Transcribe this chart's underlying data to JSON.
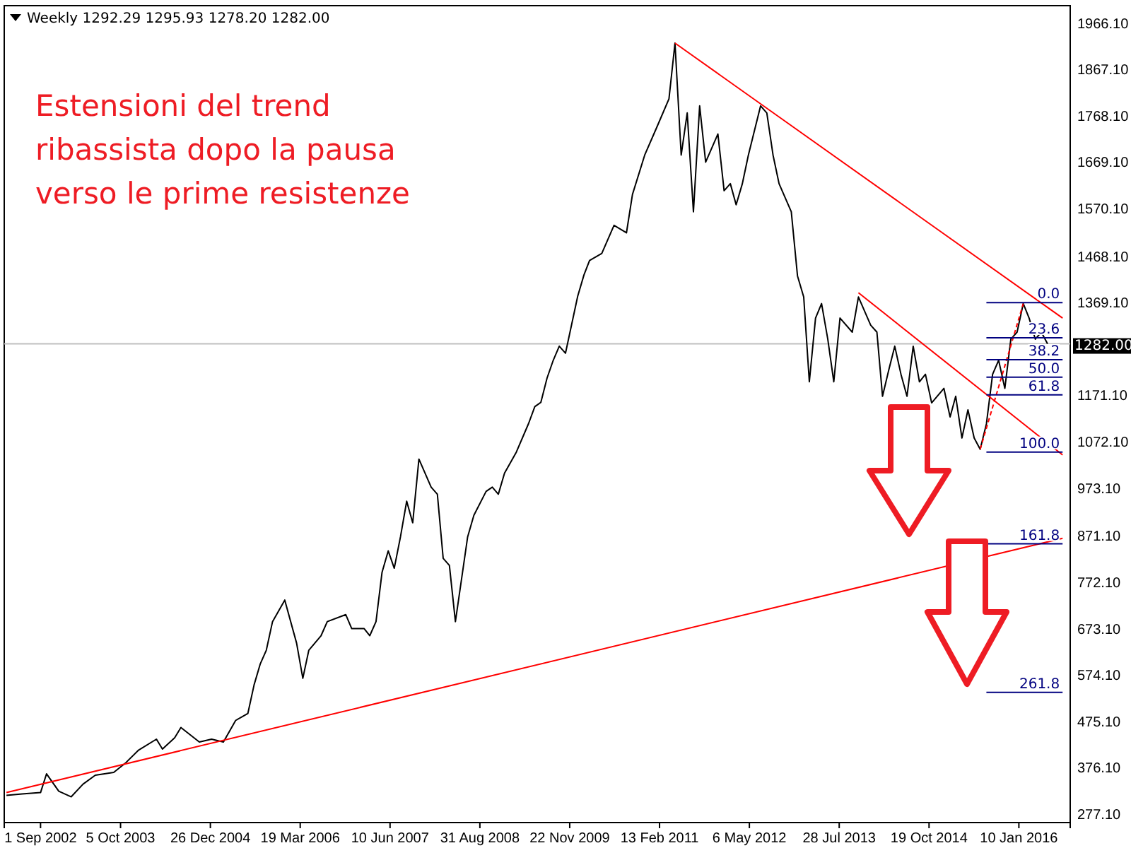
{
  "chart_data": {
    "type": "line",
    "title": "Weekly  1292.29 1295.93 1278.20 1282.00",
    "annotations": [
      "Estensioni del trend\nribassista dopo la pausa\nverso le prime resistenze"
    ],
    "xlim": [
      "2002-03-04",
      "2016-09-22"
    ],
    "xticks": [
      {
        "value": "2002-09-01",
        "label": "1 Sep 2002"
      },
      {
        "value": "2003-10-05",
        "label": "5 Oct 2003"
      },
      {
        "value": "2004-12-26",
        "label": "26 Dec 2004"
      },
      {
        "value": "2006-03-19",
        "label": "19 Mar 2006"
      },
      {
        "value": "2007-06-10",
        "label": "10 Jun 2007"
      },
      {
        "value": "2008-08-31",
        "label": "31 Aug 2008"
      },
      {
        "value": "2009-11-22",
        "label": "22 Nov 2009"
      },
      {
        "value": "2011-02-13",
        "label": "13 Feb 2011"
      },
      {
        "value": "2012-05-06",
        "label": "6 May 2012"
      },
      {
        "value": "2013-07-28",
        "label": "28 Jul 2013"
      },
      {
        "value": "2014-10-19",
        "label": "19 Oct 2014"
      },
      {
        "value": "2016-01-10",
        "label": "10 Jan 2016"
      }
    ],
    "ylim": [
      260,
      2004
    ],
    "yticks": [
      {
        "value": 277.1,
        "label": "277.10"
      },
      {
        "value": 376.1,
        "label": "376.10"
      },
      {
        "value": 475.1,
        "label": "475.10"
      },
      {
        "value": 574.1,
        "label": "574.10"
      },
      {
        "value": 673.1,
        "label": "673.10"
      },
      {
        "value": 772.1,
        "label": "772.10"
      },
      {
        "value": 871.1,
        "label": "871.10"
      },
      {
        "value": 973.1,
        "label": "973.10"
      },
      {
        "value": 1072.1,
        "label": "1072.10"
      },
      {
        "value": 1171.1,
        "label": "1171.10"
      },
      {
        "value": 1369.1,
        "label": "1369.10"
      },
      {
        "value": 1468.1,
        "label": "1468.10"
      },
      {
        "value": 1570.1,
        "label": "1570.10"
      },
      {
        "value": 1669.1,
        "label": "1669.10"
      },
      {
        "value": 1768.1,
        "label": "1768.10"
      },
      {
        "value": 1867.1,
        "label": "1867.10"
      },
      {
        "value": 1966.1,
        "label": "1966.10"
      }
    ],
    "ref_lines": [
      {
        "axis": "y",
        "value": 1282,
        "label": "1282.00",
        "color": "#c0c0c0"
      }
    ],
    "series": [
      {
        "color": "#000000",
        "x": [
          "2002-03-15",
          "2002-06",
          "2002-09",
          "2002-10",
          "2002-12",
          "2003-02",
          "2003-04",
          "2003-06",
          "2003-09",
          "2003-11",
          "2004-01",
          "2004-04",
          "2004-05",
          "2004-07",
          "2004-08",
          "2004-11",
          "2005-01",
          "2005-03",
          "2005-05",
          "2005-07",
          "2005-08",
          "2005-09",
          "2005-10",
          "2005-11",
          "2006-01",
          "2006-03",
          "2006-04",
          "2006-05",
          "2006-07",
          "2006-08",
          "2006-11",
          "2006-12",
          "2007-02",
          "2007-03",
          "2007-04",
          "2007-05",
          "2007-06",
          "2007-07",
          "2007-08",
          "2007-09",
          "2007-10",
          "2007-11",
          "2008-01",
          "2008-02",
          "2008-03",
          "2008-04",
          "2008-05",
          "2008-07",
          "2008-08",
          "2008-10",
          "2008-11",
          "2008-12",
          "2009-01",
          "2009-03",
          "2009-05",
          "2009-06",
          "2009-07",
          "2009-08",
          "2009-09",
          "2009-10",
          "2009-11",
          "2010-01",
          "2010-02",
          "2010-03",
          "2010-05",
          "2010-07",
          "2010-09",
          "2010-10",
          "2010-12",
          "2011-02",
          "2011-04",
          "2011-05",
          "2011-06",
          "2011-07",
          "2011-08",
          "2011-09",
          "2011-10",
          "2011-12",
          "2012-01",
          "2012-02",
          "2012-03",
          "2012-04",
          "2012-05",
          "2012-07",
          "2012-08",
          "2012-09",
          "2012-10",
          "2012-12",
          "2013-01",
          "2013-02",
          "2013-03",
          "2013-04",
          "2013-05",
          "2013-06",
          "2013-07",
          "2013-08",
          "2013-10",
          "2013-11",
          "2014-01",
          "2014-02",
          "2014-03",
          "2014-04",
          "2014-05",
          "2014-06",
          "2014-07",
          "2014-08",
          "2014-09",
          "2014-10",
          "2014-11",
          "2015-01",
          "2015-02",
          "2015-03",
          "2015-04",
          "2015-05",
          "2015-06",
          "2015-07",
          "2015-08",
          "2015-09",
          "2015-10",
          "2015-11",
          "2015-12",
          "2016-01",
          "2016-02",
          "2016-03",
          "2016-04",
          "2016-05",
          "2016-06"
        ],
        "values": [
          318,
          321,
          324,
          364,
          327,
          315,
          342,
          361,
          367,
          388,
          414,
          438,
          417,
          441,
          463,
          432,
          438,
          432,
          478,
          493,
          554,
          599,
          628,
          689,
          735,
          643,
          568,
          628,
          659,
          689,
          704,
          674,
          674,
          659,
          689,
          794,
          840,
          803,
          870,
          946,
          900,
          1036,
          976,
          961,
          824,
          809,
          689,
          870,
          916,
          967,
          976,
          961,
          1006,
          1051,
          1112,
          1148,
          1157,
          1209,
          1247,
          1277,
          1262,
          1384,
          1429,
          1460,
          1475,
          1535,
          1519,
          1601,
          1685,
          1746,
          1805,
          1924,
          1685,
          1775,
          1564,
          1790,
          1670,
          1730,
          1609,
          1624,
          1579,
          1624,
          1685,
          1790,
          1775,
          1685,
          1624,
          1564,
          1427,
          1382,
          1201,
          1337,
          1368,
          1292,
          1201,
          1337,
          1307,
          1382,
          1322,
          1307,
          1170,
          1226,
          1277,
          1217,
          1170,
          1277,
          1201,
          1217,
          1156,
          1187,
          1126,
          1170,
          1081,
          1141,
          1081,
          1057,
          1111,
          1217,
          1247,
          1187,
          1292,
          1307,
          1368,
          1337,
          1292,
          1307,
          1282
        ]
      },
      {
        "color": "#ff0000",
        "x": [
          "2011-05",
          "2016-08-15"
        ],
        "values": [
          1924,
          1337
        ]
      },
      {
        "color": "#ff0000",
        "x": [
          "2013-11",
          "2016-08-15"
        ],
        "values": [
          1391,
          1045
        ]
      },
      {
        "color": "#ff0000",
        "x": [
          "2002-03-15",
          "2016-08-15"
        ],
        "values": [
          324,
          867
        ]
      },
      {
        "color": "#ff0000",
        "line_style": "dashed",
        "x": [
          "2015-07",
          "2016-02"
        ],
        "values": [
          1057,
          1368
        ]
      },
      {
        "name": "0.0",
        "color": "#000080",
        "x": [
          "2015-08",
          "2016-08-15"
        ],
        "values": [
          1370,
          1370
        ]
      },
      {
        "name": "23.6",
        "color": "#000080",
        "x": [
          "2015-08",
          "2016-08-15"
        ],
        "values": [
          1295,
          1295
        ]
      },
      {
        "name": "38.2",
        "color": "#000080",
        "x": [
          "2015-08",
          "2016-08-15"
        ],
        "values": [
          1248,
          1248
        ]
      },
      {
        "name": "50.0",
        "color": "#000080",
        "x": [
          "2015-08",
          "2016-08-15"
        ],
        "values": [
          1211,
          1211
        ]
      },
      {
        "name": "61.8",
        "color": "#000080",
        "x": [
          "2015-08",
          "2016-08-15"
        ],
        "values": [
          1173,
          1173
        ]
      },
      {
        "name": "100.0",
        "color": "#000080",
        "x": [
          "2015-08",
          "2016-08-15"
        ],
        "values": [
          1051,
          1051
        ]
      },
      {
        "name": "161.8",
        "color": "#000080",
        "x": [
          "2015-08",
          "2016-08-15"
        ],
        "values": [
          855,
          855
        ]
      },
      {
        "name": "261.8",
        "color": "#000080",
        "x": [
          "2015-08",
          "2016-08-15"
        ],
        "values": [
          538,
          538
        ]
      }
    ]
  }
}
